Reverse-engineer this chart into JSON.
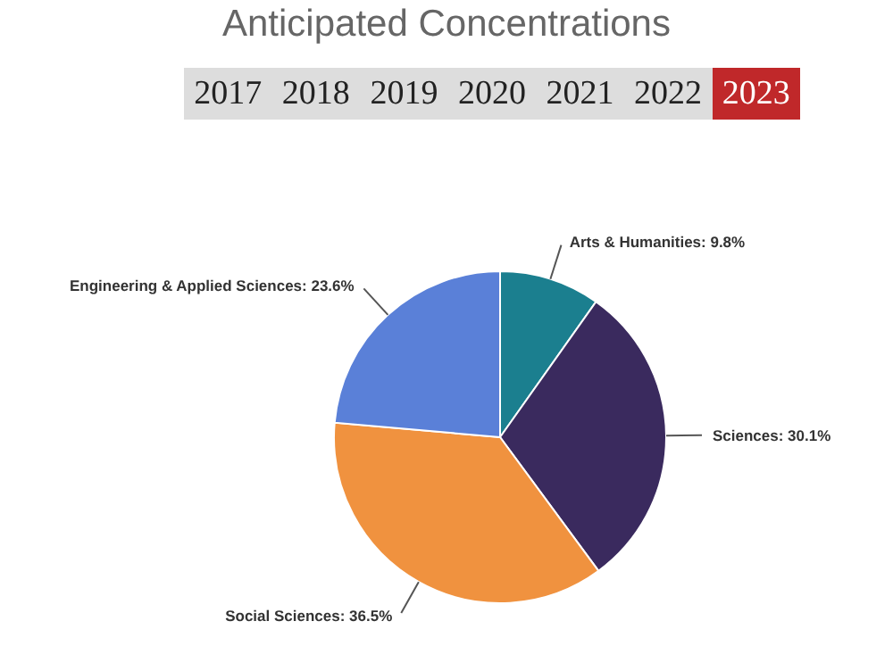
{
  "chart_data": {
    "type": "pie",
    "title": "Anticipated Concentrations",
    "annotations": [
      "2017",
      "2018",
      "2019",
      "2020",
      "2021",
      "2022",
      "2023"
    ],
    "categories": [
      "Arts & Humanities",
      "Sciences",
      "Social Sciences",
      "Engineering & Applied Sciences"
    ],
    "values": [
      9.8,
      30.1,
      36.5,
      23.6
    ],
    "value_labels": [
      "9.8%",
      "30.1%",
      "36.5%",
      "23.6%"
    ],
    "colors": [
      "#1b7f8f",
      "#3a2a5e",
      "#f0923f",
      "#5a80d8"
    ]
  }
}
